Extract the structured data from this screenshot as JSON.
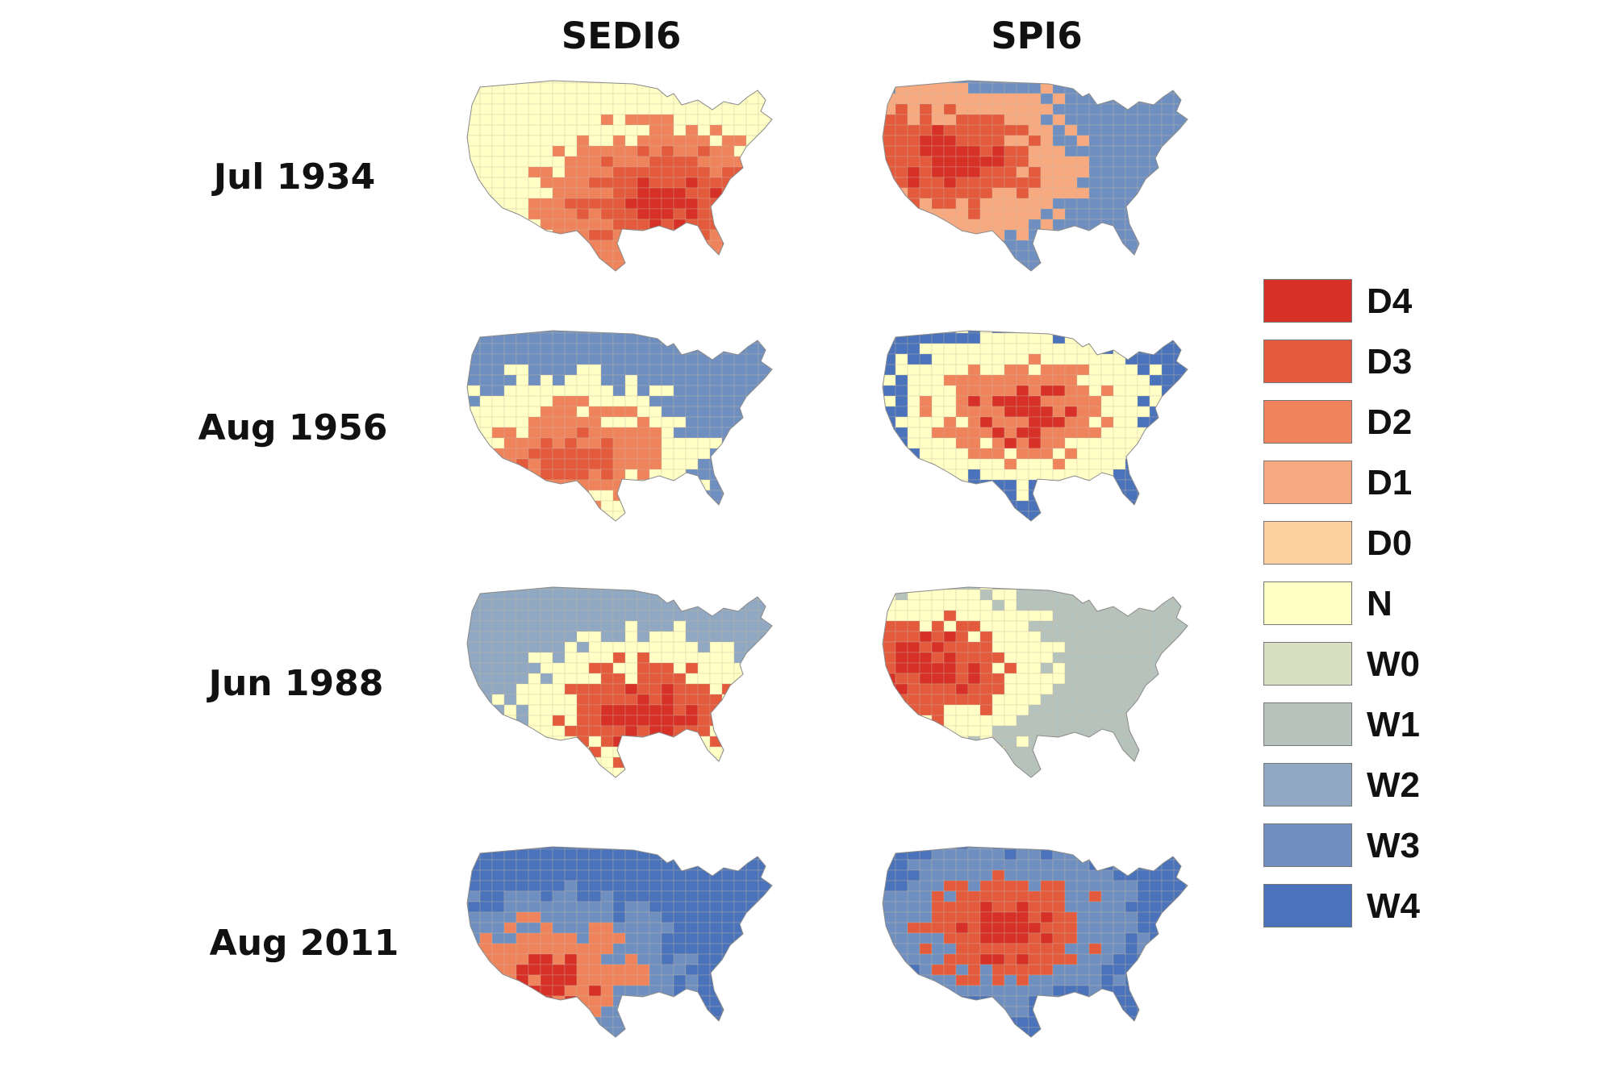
{
  "columns": [
    {
      "id": "sedi6",
      "label": "SEDI6"
    },
    {
      "id": "spi6",
      "label": "SPI6"
    }
  ],
  "rows": [
    {
      "label": "Jul 1934"
    },
    {
      "label": "Aug 1956"
    },
    {
      "label": "Jun 1988"
    },
    {
      "label": "Aug 2011"
    }
  ],
  "legend": {
    "items": [
      {
        "label": "D4",
        "color": "#d73027"
      },
      {
        "label": "D3",
        "color": "#e35a3d"
      },
      {
        "label": "D2",
        "color": "#ef835c"
      },
      {
        "label": "D1",
        "color": "#f7a97f"
      },
      {
        "label": "D0",
        "color": "#fdd09d"
      },
      {
        "label": "N",
        "color": "#ffffc6"
      },
      {
        "label": "W0",
        "color": "#d9e0c1"
      },
      {
        "label": "W1",
        "color": "#b5c3bc"
      },
      {
        "label": "W2",
        "color": "#90a8c1"
      },
      {
        "label": "W3",
        "color": "#6f8fc0"
      },
      {
        "label": "W4",
        "color": "#4a73bb"
      }
    ]
  },
  "maps": [
    {
      "row": 0,
      "col": 0,
      "dominant": [
        "D4",
        "D3",
        "D2",
        "N"
      ]
    },
    {
      "row": 0,
      "col": 1,
      "dominant": [
        "D4",
        "D3",
        "D1",
        "W3"
      ]
    },
    {
      "row": 1,
      "col": 0,
      "dominant": [
        "D3",
        "D2",
        "N",
        "W3"
      ]
    },
    {
      "row": 1,
      "col": 1,
      "dominant": [
        "D4",
        "D2",
        "N",
        "W4"
      ]
    },
    {
      "row": 2,
      "col": 0,
      "dominant": [
        "D4",
        "D3",
        "N",
        "W2"
      ]
    },
    {
      "row": 2,
      "col": 1,
      "dominant": [
        "D4",
        "D3",
        "N",
        "W1"
      ]
    },
    {
      "row": 3,
      "col": 0,
      "dominant": [
        "D4",
        "D2",
        "W3",
        "W4"
      ]
    },
    {
      "row": 3,
      "col": 1,
      "dominant": [
        "D4",
        "D3",
        "W3",
        "W4"
      ]
    }
  ]
}
